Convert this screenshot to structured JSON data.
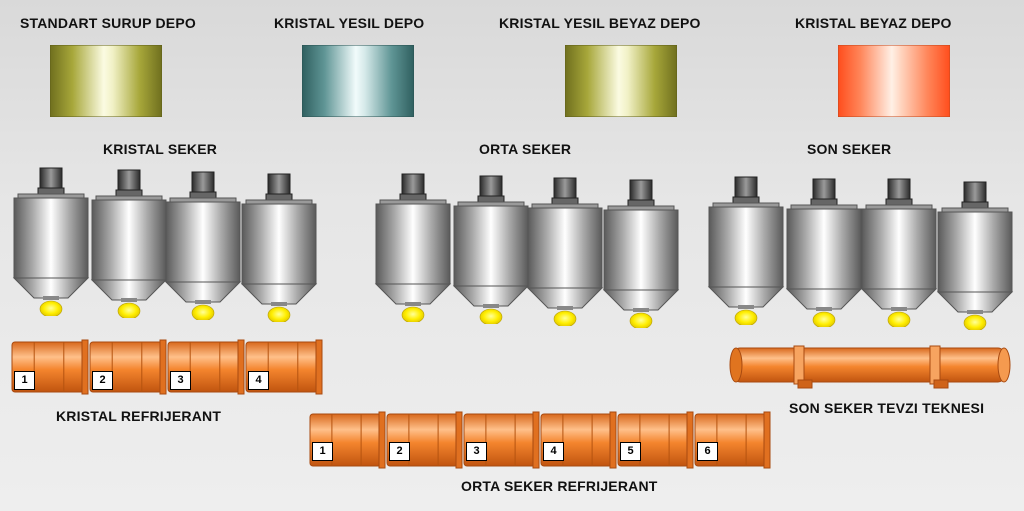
{
  "tanks": [
    {
      "label": "STANDART SURUP DEPO",
      "color": "olive"
    },
    {
      "label": "KRISTAL YESIL DEPO",
      "color": "teal"
    },
    {
      "label": "KRISTAL YESIL BEYAZ DEPO",
      "color": "olive"
    },
    {
      "label": "KRISTAL BEYAZ DEPO",
      "color": "orange"
    }
  ],
  "sections": {
    "kristal": "KRISTAL SEKER",
    "orta": "ORTA SEKER",
    "son": "SON SEKER"
  },
  "coolers": {
    "kristal": {
      "label": "KRISTAL REFRIJERANT",
      "stages": [
        "1",
        "2",
        "3",
        "4"
      ]
    },
    "orta": {
      "label": "ORTA SEKER REFRIJERANT",
      "stages": [
        "1",
        "2",
        "3",
        "4",
        "5",
        "6"
      ]
    },
    "son": {
      "label": "SON SEKER TEVZI TEKNESI"
    }
  },
  "colors": {
    "olive": "#a2a236",
    "teal": "#4e8484",
    "orange": "#ff6a3a",
    "cooler_orange": "#f07a28",
    "sugar_yellow": "#ffee00",
    "background": "#e2e2e2"
  }
}
